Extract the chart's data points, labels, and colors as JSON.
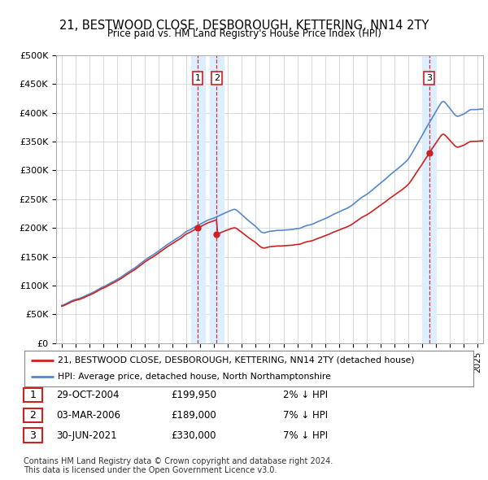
{
  "title": "21, BESTWOOD CLOSE, DESBOROUGH, KETTERING, NN14 2TY",
  "subtitle": "Price paid vs. HM Land Registry's House Price Index (HPI)",
  "yticks": [
    0,
    50000,
    100000,
    150000,
    200000,
    250000,
    300000,
    350000,
    400000,
    450000,
    500000
  ],
  "ytick_labels": [
    "£0",
    "£50K",
    "£100K",
    "£150K",
    "£200K",
    "£250K",
    "£300K",
    "£350K",
    "£400K",
    "£450K",
    "£500K"
  ],
  "hpi_color": "#5588cc",
  "price_color": "#cc2222",
  "vshade_color": "#ddeeff",
  "legend_label_price": "21, BESTWOOD CLOSE, DESBOROUGH, KETTERING, NN14 2TY (detached house)",
  "legend_label_hpi": "HPI: Average price, detached house, North Northamptonshire",
  "transaction_1_date": 2004.82,
  "transaction_1_price": 199950,
  "transaction_2_date": 2006.17,
  "transaction_2_price": 189000,
  "transaction_3_date": 2021.5,
  "transaction_3_price": 330000,
  "footer_line1": "Contains HM Land Registry data © Crown copyright and database right 2024.",
  "footer_line2": "This data is licensed under the Open Government Licence v3.0.",
  "table_rows": [
    {
      "num": "1",
      "date": "29-OCT-2004",
      "price": "£199,950",
      "hpi": "2% ↓ HPI"
    },
    {
      "num": "2",
      "date": "03-MAR-2006",
      "price": "£189,000",
      "hpi": "7% ↓ HPI"
    },
    {
      "num": "3",
      "date": "30-JUN-2021",
      "price": "£330,000",
      "hpi": "7% ↓ HPI"
    }
  ]
}
